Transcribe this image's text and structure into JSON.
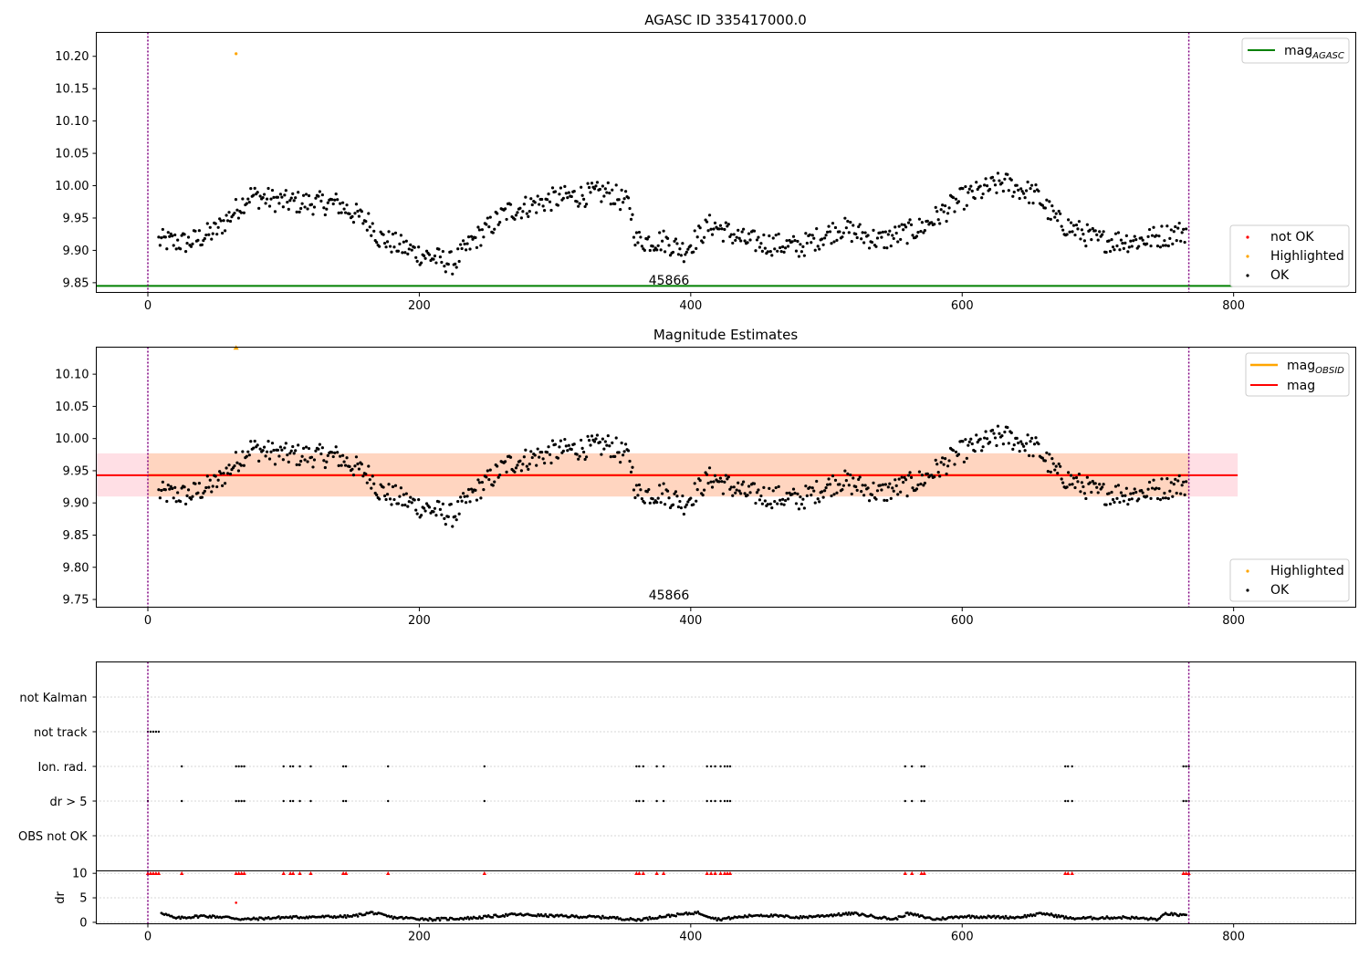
{
  "chart_data": [
    {
      "type": "scatter",
      "title": "AGASC ID 335417000.0",
      "xlabel": "",
      "ylabel": "",
      "xlim": [
        -38,
        890
      ],
      "ylim": [
        9.835,
        10.237
      ],
      "xticks": [
        "0",
        "200",
        "400",
        "600",
        "800"
      ],
      "yticks": [
        "9.85",
        "9.90",
        "9.95",
        "10.00",
        "10.05",
        "10.10",
        "10.15",
        "10.20"
      ],
      "obs_boundaries": [
        0,
        767
      ],
      "annotation": {
        "text": "45866",
        "x": 383
      },
      "reference_line": {
        "name": "mag_AGASC",
        "y": 9.845,
        "color": "#008000",
        "x_range": [
          -38,
          803
        ]
      },
      "legend_top": [
        {
          "label": "mag",
          "sub": "AGASC",
          "color": "#008000",
          "kind": "line"
        }
      ],
      "legend_bottom": [
        {
          "label": "not OK",
          "color": "#ff0000",
          "kind": "dot"
        },
        {
          "label": "Highlighted",
          "color": "#ffa500",
          "kind": "dot"
        },
        {
          "label": "OK",
          "color": "#000000",
          "kind": "dot"
        }
      ],
      "highlighted_points": [
        [
          65,
          10.204
        ]
      ],
      "ok_points_profile": [
        [
          8,
          9.915
        ],
        [
          30,
          9.912
        ],
        [
          50,
          9.93
        ],
        [
          75,
          9.985
        ],
        [
          100,
          9.975
        ],
        [
          140,
          9.972
        ],
        [
          165,
          9.94
        ],
        [
          170,
          9.92
        ],
        [
          200,
          9.895
        ],
        [
          225,
          9.88
        ],
        [
          240,
          9.915
        ],
        [
          265,
          9.96
        ],
        [
          300,
          9.98
        ],
        [
          340,
          9.99
        ],
        [
          355,
          9.97
        ],
        [
          360,
          9.915
        ],
        [
          380,
          9.915
        ],
        [
          395,
          9.9
        ],
        [
          415,
          9.94
        ],
        [
          440,
          9.915
        ],
        [
          480,
          9.905
        ],
        [
          510,
          9.935
        ],
        [
          540,
          9.915
        ],
        [
          570,
          9.935
        ],
        [
          600,
          9.98
        ],
        [
          630,
          10.005
        ],
        [
          655,
          9.985
        ],
        [
          670,
          9.945
        ],
        [
          700,
          9.915
        ],
        [
          730,
          9.915
        ],
        [
          765,
          9.93
        ]
      ],
      "ok_points_noise": 0.018,
      "n_points": 760
    },
    {
      "type": "scatter",
      "title": "Magnitude Estimates",
      "xlabel": "",
      "ylabel": "",
      "xlim": [
        -38,
        890
      ],
      "ylim": [
        9.738,
        10.142
      ],
      "xticks": [
        "0",
        "200",
        "400",
        "600",
        "800"
      ],
      "yticks": [
        "9.75",
        "9.80",
        "9.85",
        "9.90",
        "9.95",
        "10.00",
        "10.05",
        "10.10"
      ],
      "obs_boundaries": [
        0,
        767
      ],
      "annotation": {
        "text": "45866",
        "x": 383
      },
      "mag_line": {
        "name": "mag",
        "y": 9.943,
        "color": "#ff0000",
        "band": [
          9.91,
          9.977
        ],
        "x_range": [
          -38,
          803
        ],
        "band_color": "#ffc0cb"
      },
      "mag_obsid_line": {
        "name": "mag_OBSID",
        "y": 9.943,
        "color": "#ffa500",
        "band": [
          9.91,
          9.977
        ],
        "x_range": [
          0,
          767
        ],
        "band_color": "#ffd0b0"
      },
      "legend_top": [
        {
          "label": "mag",
          "sub": "OBSID",
          "color": "#ffa500",
          "kind": "line"
        },
        {
          "label": "mag",
          "sub": "",
          "color": "#ff0000",
          "kind": "line"
        }
      ],
      "legend_bottom": [
        {
          "label": "Highlighted",
          "color": "#ffa500",
          "kind": "dot"
        },
        {
          "label": "OK",
          "color": "#000000",
          "kind": "dot"
        }
      ],
      "highlighted_points": [
        [
          65,
          10.141
        ]
      ]
    },
    {
      "type": "scatter",
      "title": "",
      "xlabel": "",
      "ylabel": "",
      "xlim": [
        -38,
        890
      ],
      "categories": [
        "not Kalman",
        "not track",
        "Ion. rad.",
        "dr > 5",
        "OBS not OK"
      ],
      "flag_points": {
        "not track": [
          0,
          2,
          4,
          6,
          8
        ],
        "Ion. rad.": [
          25,
          65,
          67,
          69,
          71,
          100,
          105,
          107,
          112,
          120,
          144,
          146,
          177,
          248,
          360,
          362,
          365,
          375,
          380,
          412,
          415,
          418,
          422,
          425,
          427,
          429,
          558,
          563,
          570,
          572,
          676,
          678,
          681,
          763,
          765,
          767
        ],
        "dr > 5": [
          0,
          25,
          65,
          67,
          69,
          71,
          100,
          105,
          107,
          112,
          120,
          144,
          146,
          177,
          248,
          360,
          362,
          365,
          375,
          380,
          412,
          415,
          418,
          422,
          425,
          427,
          429,
          558,
          563,
          570,
          572,
          676,
          678,
          681,
          763,
          765,
          767
        ]
      }
    },
    {
      "type": "scatter",
      "title": "",
      "xlabel": "",
      "ylabel": "dr",
      "xlim": [
        -38,
        890
      ],
      "ylim": [
        -0.3,
        10.5
      ],
      "xticks": [
        "0",
        "200",
        "400",
        "600",
        "800"
      ],
      "yticks": [
        "0",
        "5",
        "10"
      ],
      "red_points_y": 10,
      "red_points_x": [
        0,
        2,
        4,
        6,
        8,
        25,
        65,
        67,
        69,
        71,
        100,
        105,
        107,
        112,
        120,
        144,
        146,
        177,
        248,
        360,
        362,
        365,
        375,
        380,
        412,
        415,
        418,
        422,
        425,
        427,
        429,
        558,
        563,
        570,
        572,
        676,
        678,
        681,
        763,
        765,
        767
      ],
      "extra_red_points": [
        [
          65,
          4.0
        ]
      ],
      "dr_profile": [
        [
          10,
          2.0
        ],
        [
          20,
          0.8
        ],
        [
          40,
          1.3
        ],
        [
          60,
          1.0
        ],
        [
          70,
          0.6
        ],
        [
          100,
          1.0
        ],
        [
          150,
          1.2
        ],
        [
          165,
          2.0
        ],
        [
          180,
          1.0
        ],
        [
          210,
          0.6
        ],
        [
          240,
          0.9
        ],
        [
          270,
          1.6
        ],
        [
          300,
          1.3
        ],
        [
          340,
          1.0
        ],
        [
          360,
          0.5
        ],
        [
          380,
          1.2
        ],
        [
          405,
          2.0
        ],
        [
          420,
          0.6
        ],
        [
          450,
          1.5
        ],
        [
          480,
          1.0
        ],
        [
          520,
          1.8
        ],
        [
          550,
          0.6
        ],
        [
          560,
          1.8
        ],
        [
          580,
          0.6
        ],
        [
          600,
          1.2
        ],
        [
          640,
          1.0
        ],
        [
          660,
          1.8
        ],
        [
          680,
          0.8
        ],
        [
          720,
          1.0
        ],
        [
          745,
          0.6
        ],
        [
          750,
          1.8
        ],
        [
          765,
          1.3
        ]
      ]
    }
  ]
}
